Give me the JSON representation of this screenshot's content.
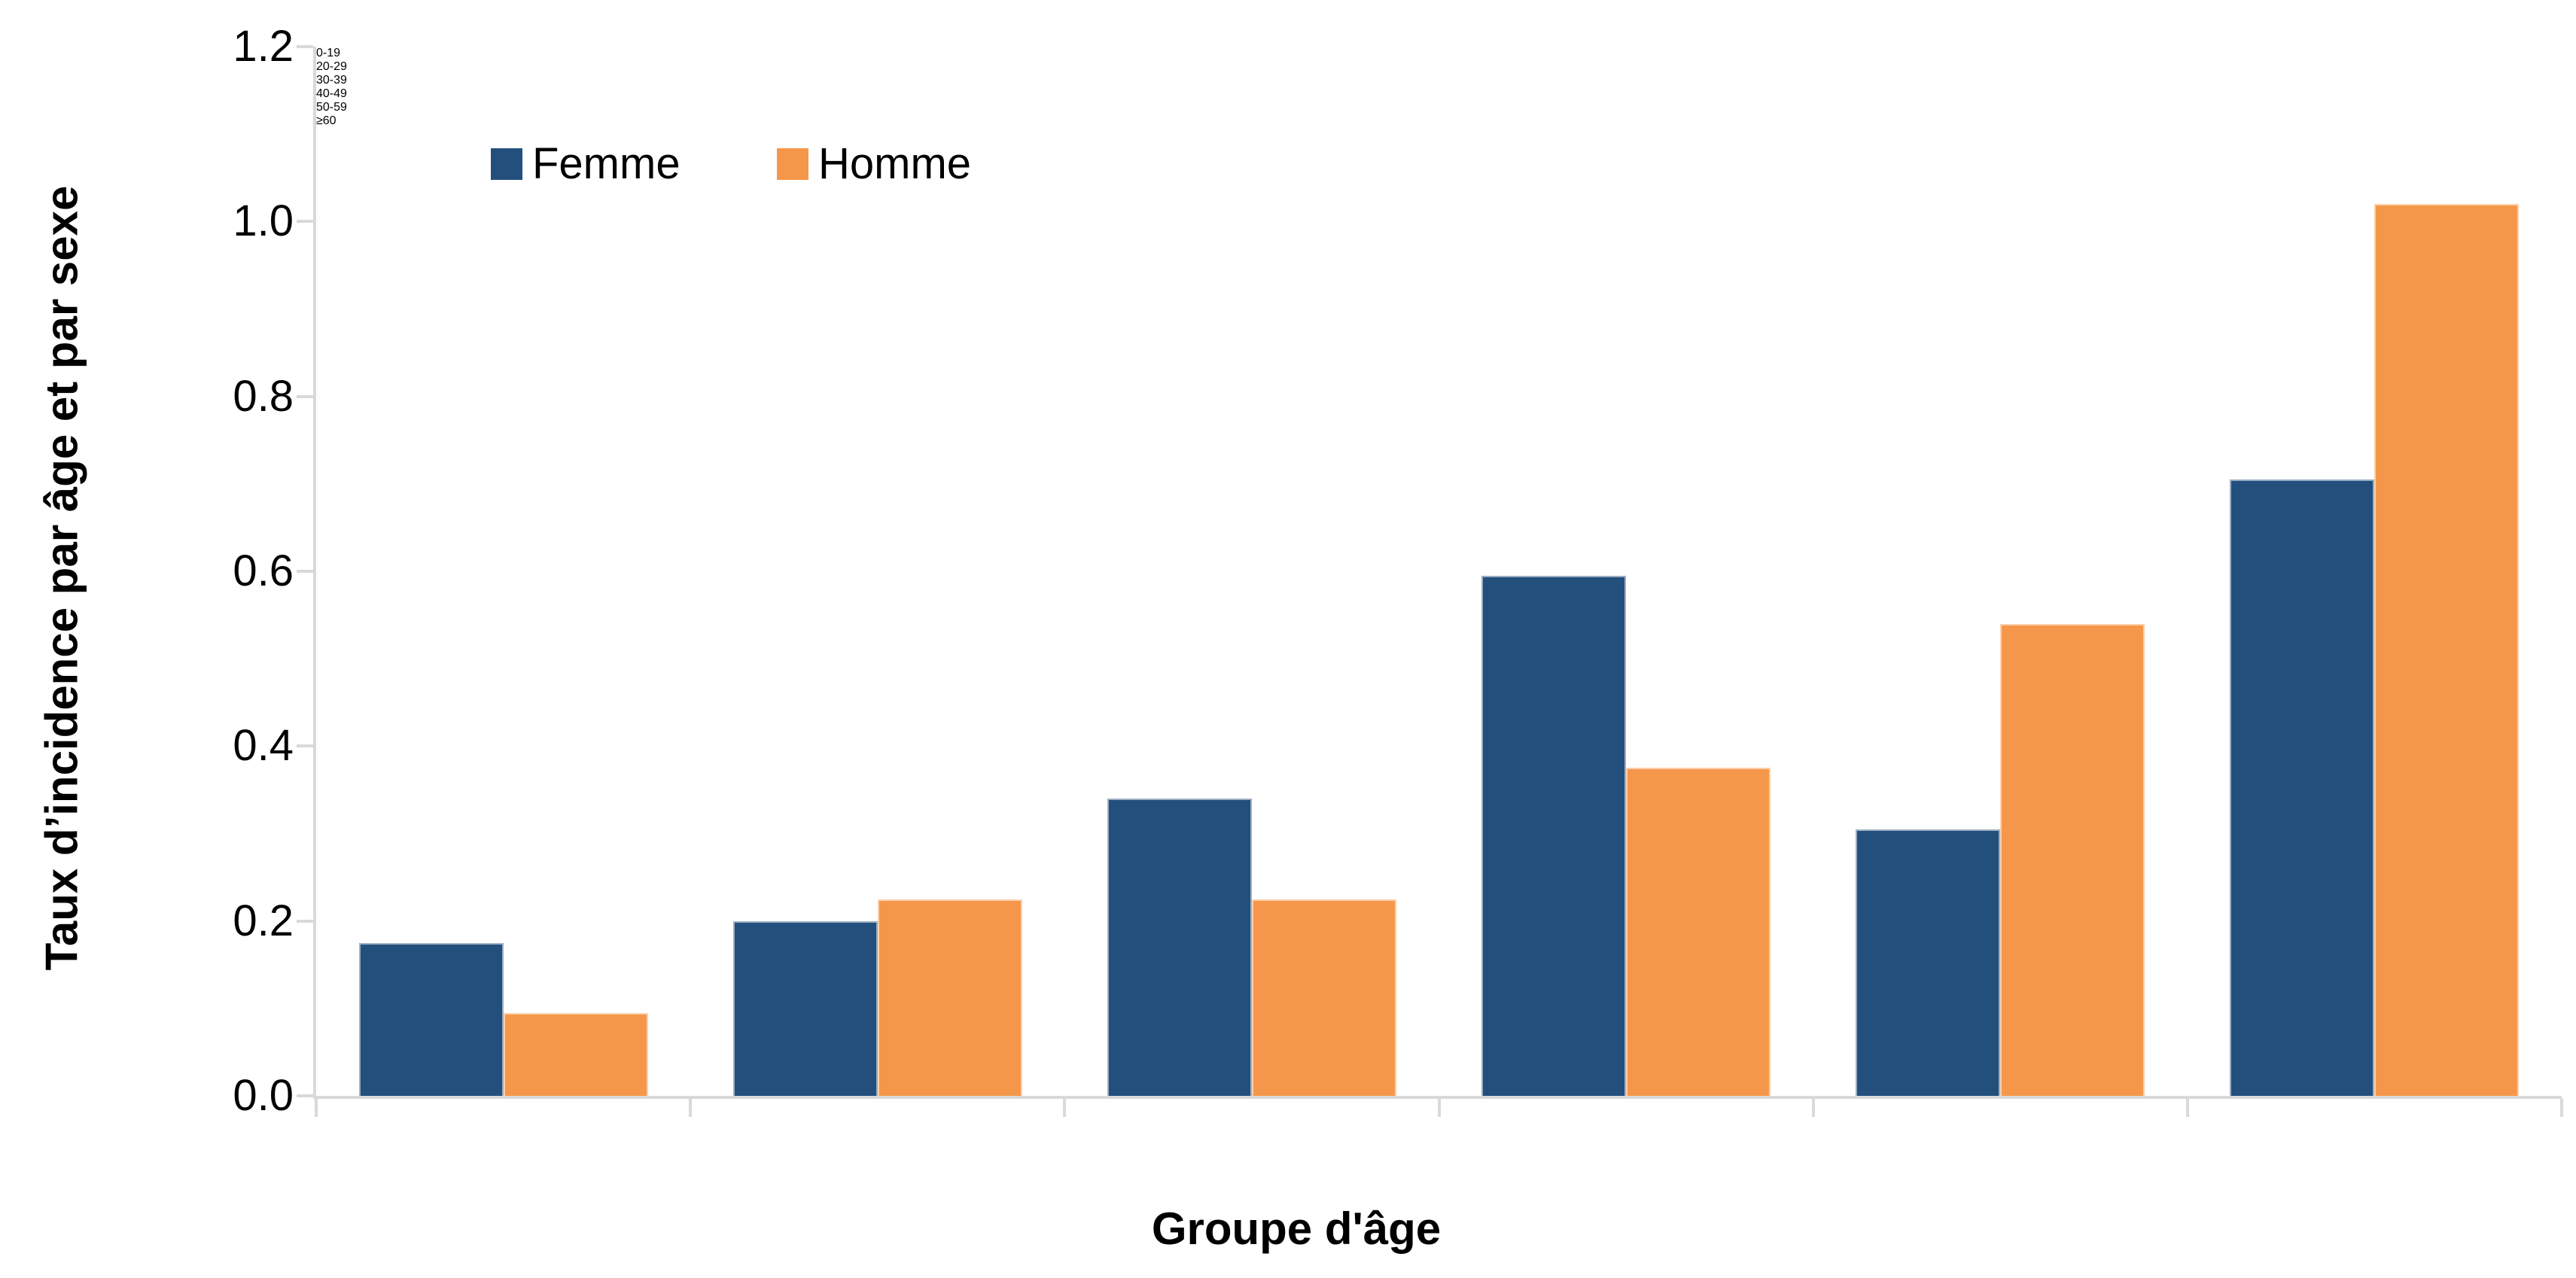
{
  "chart_data": {
    "type": "bar",
    "title": "",
    "categories": [
      "0-19",
      "20-29",
      "30-39",
      "40-49",
      "50-59",
      "≥60"
    ],
    "series": [
      {
        "name": "Femme",
        "color": "#234F7D",
        "values": [
          0.175,
          0.2,
          0.34,
          0.595,
          0.305,
          0.705
        ]
      },
      {
        "name": "Homme",
        "color": "#F5974A",
        "values": [
          0.095,
          0.225,
          0.225,
          0.375,
          0.54,
          1.02
        ]
      }
    ],
    "xlabel": "Groupe d'âge",
    "ylabel": "Taux d’incidence par âge et par sexe",
    "ylim": [
      0,
      1.2
    ],
    "ytick_step": 0.2,
    "ytick_labels": [
      "0.0",
      "0.2",
      "0.4",
      "0.6",
      "0.8",
      "1.0",
      "1.2"
    ],
    "grid": false,
    "legend_position": "top-inside-left"
  },
  "colors": {
    "femme": "#234F7D",
    "homme": "#F5974A",
    "axis_line": "#D9D9D9",
    "text": "#000000",
    "background": "#FFFFFF"
  }
}
